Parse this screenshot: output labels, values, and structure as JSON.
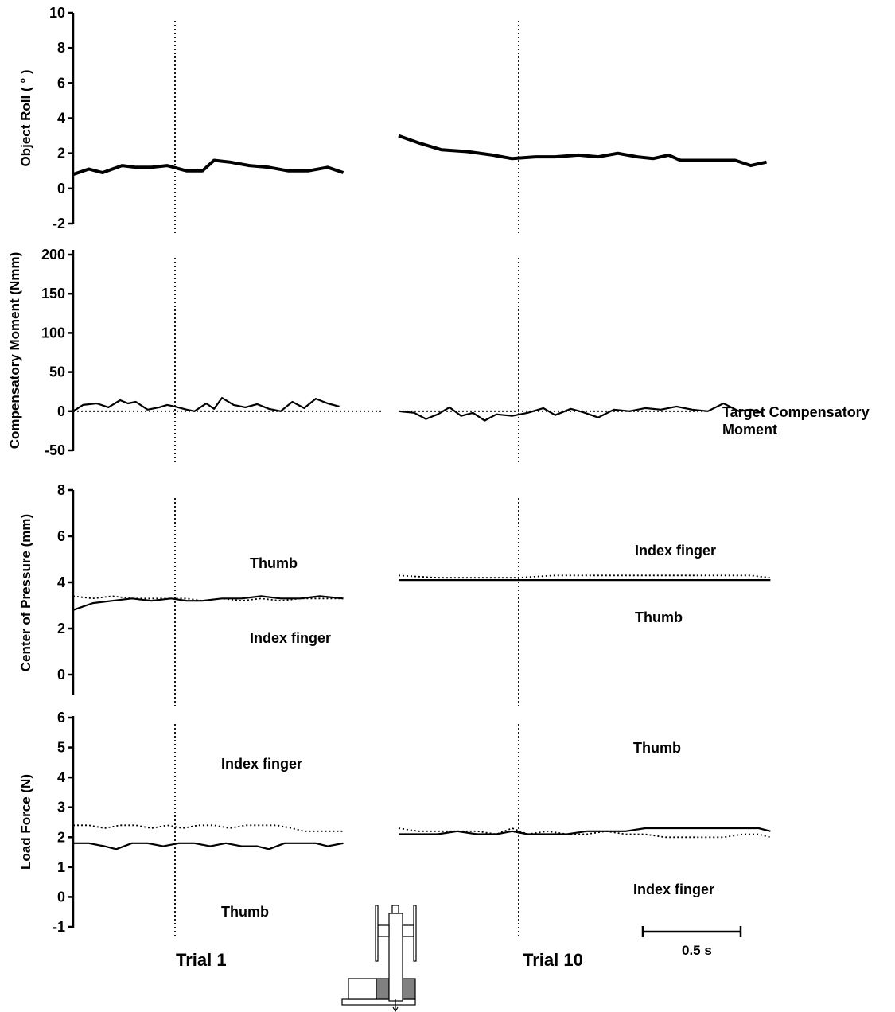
{
  "colors": {
    "ink": "#000000",
    "background": "#ffffff",
    "device_gray": "#808080"
  },
  "labels": {
    "trial1": "Trial 1",
    "trial10": "Trial 10",
    "scale_bar": "0.5 s",
    "target_line_1": "Target Compensatory",
    "target_line_2": "Moment"
  },
  "chart_data": [
    {
      "type": "line",
      "ylabel": "Object Roll ( ° )",
      "ylim": [
        -2,
        10
      ],
      "yticks": [
        -2,
        0,
        2,
        4,
        6,
        8,
        10
      ],
      "x_unit": "s",
      "onset_time": 0.58,
      "series": [
        {
          "trial": "Trial 1",
          "style": "solid-thick",
          "x": [
            0,
            0.08,
            0.15,
            0.25,
            0.32,
            0.4,
            0.48,
            0.58,
            0.66,
            0.72,
            0.8,
            0.9,
            1.0,
            1.1,
            1.2,
            1.3,
            1.38
          ],
          "y": [
            0.8,
            1.1,
            0.9,
            1.3,
            1.2,
            1.2,
            1.3,
            1.0,
            1.0,
            1.6,
            1.5,
            1.3,
            1.2,
            1.0,
            1.0,
            1.2,
            0.9
          ]
        },
        {
          "trial": "Trial 10",
          "style": "solid-thick",
          "x": [
            0,
            0.1,
            0.22,
            0.35,
            0.48,
            0.58,
            0.7,
            0.8,
            0.92,
            1.02,
            1.12,
            1.22,
            1.3,
            1.38,
            1.44,
            1.5,
            1.56,
            1.62,
            1.72,
            1.8,
            1.88
          ],
          "y": [
            3.0,
            2.6,
            2.2,
            2.1,
            1.9,
            1.7,
            1.8,
            1.8,
            1.9,
            1.8,
            2.0,
            1.8,
            1.7,
            1.9,
            1.6,
            1.6,
            1.6,
            1.6,
            1.6,
            1.3,
            1.5
          ]
        }
      ],
      "annotations": []
    },
    {
      "type": "line",
      "ylabel": "Compensatory Moment (Nmm)",
      "ylim": [
        -50,
        210
      ],
      "yticks": [
        -50,
        0,
        50,
        100,
        150,
        200
      ],
      "x_unit": "s",
      "onset_time": 0.58,
      "series": [
        {
          "trial": "Trial 1",
          "style": "solid",
          "x": [
            0,
            0.05,
            0.12,
            0.18,
            0.24,
            0.28,
            0.32,
            0.38,
            0.44,
            0.48,
            0.52,
            0.58,
            0.62,
            0.68,
            0.72,
            0.76,
            0.82,
            0.88,
            0.94,
            1.0,
            1.06,
            1.12,
            1.18,
            1.24,
            1.3,
            1.36
          ],
          "y": [
            0,
            8,
            10,
            5,
            14,
            10,
            12,
            2,
            5,
            8,
            6,
            2,
            0,
            10,
            3,
            17,
            8,
            5,
            9,
            3,
            0,
            12,
            4,
            16,
            10,
            6
          ]
        },
        {
          "trial": "Trial 10",
          "style": "solid",
          "x": [
            0,
            0.08,
            0.14,
            0.2,
            0.26,
            0.32,
            0.38,
            0.44,
            0.5,
            0.58,
            0.66,
            0.74,
            0.8,
            0.88,
            0.94,
            1.02,
            1.1,
            1.18,
            1.26,
            1.34,
            1.42,
            1.5,
            1.58,
            1.66,
            1.74,
            1.8,
            1.86
          ],
          "y": [
            0,
            -2,
            -10,
            -4,
            5,
            -6,
            -2,
            -12,
            -4,
            -6,
            -2,
            4,
            -5,
            3,
            -1,
            -8,
            2,
            0,
            4,
            2,
            6,
            2,
            0,
            10,
            0,
            2,
            -2
          ]
        },
        {
          "name": "Target Compensatory Moment",
          "style": "dotted",
          "x": [
            0,
            1.9
          ],
          "y": [
            0,
            0
          ]
        }
      ],
      "annotations": [
        "Target Compensatory Moment"
      ]
    },
    {
      "type": "line",
      "ylabel": "Center of Pressure (mm)",
      "ylim": [
        -1,
        8
      ],
      "yticks": [
        0,
        2,
        4,
        6,
        8
      ],
      "x_unit": "s",
      "onset_time": 0.58,
      "series": [
        {
          "trial": "Trial 1",
          "name": "Thumb",
          "style": "solid",
          "x": [
            0,
            0.1,
            0.2,
            0.3,
            0.4,
            0.5,
            0.58,
            0.66,
            0.76,
            0.86,
            0.96,
            1.06,
            1.16,
            1.26,
            1.38
          ],
          "y": [
            2.8,
            3.1,
            3.2,
            3.3,
            3.2,
            3.3,
            3.2,
            3.2,
            3.3,
            3.3,
            3.4,
            3.3,
            3.3,
            3.4,
            3.3
          ]
        },
        {
          "trial": "Trial 1",
          "name": "Index finger",
          "style": "dotted",
          "x": [
            0,
            0.1,
            0.2,
            0.3,
            0.4,
            0.5,
            0.58,
            0.66,
            0.76,
            0.86,
            0.96,
            1.06,
            1.16,
            1.26,
            1.38
          ],
          "y": [
            3.4,
            3.3,
            3.4,
            3.3,
            3.3,
            3.3,
            3.3,
            3.2,
            3.3,
            3.2,
            3.3,
            3.2,
            3.3,
            3.3,
            3.3
          ]
        },
        {
          "trial": "Trial 10",
          "name": "Thumb",
          "style": "solid",
          "x": [
            0,
            0.2,
            0.4,
            0.6,
            0.8,
            1.0,
            1.2,
            1.4,
            1.6,
            1.8,
            1.9
          ],
          "y": [
            4.1,
            4.1,
            4.1,
            4.1,
            4.1,
            4.1,
            4.1,
            4.1,
            4.1,
            4.1,
            4.1
          ]
        },
        {
          "trial": "Trial 10",
          "name": "Index finger",
          "style": "dotted",
          "x": [
            0,
            0.2,
            0.4,
            0.6,
            0.8,
            1.0,
            1.2,
            1.4,
            1.6,
            1.8,
            1.9
          ],
          "y": [
            4.3,
            4.2,
            4.2,
            4.2,
            4.3,
            4.3,
            4.3,
            4.3,
            4.3,
            4.3,
            4.2
          ]
        }
      ],
      "annotations": [
        "Thumb",
        "Index finger",
        "Index finger",
        "Thumb"
      ]
    },
    {
      "type": "line",
      "ylabel": "Load Force (N)",
      "ylim": [
        -1,
        6
      ],
      "yticks": [
        -1,
        0,
        1,
        2,
        3,
        4,
        5,
        6
      ],
      "x_unit": "s",
      "onset_time": 0.58,
      "series": [
        {
          "trial": "Trial 1",
          "name": "Thumb",
          "style": "solid",
          "x": [
            0,
            0.08,
            0.16,
            0.22,
            0.3,
            0.38,
            0.46,
            0.54,
            0.62,
            0.7,
            0.78,
            0.86,
            0.94,
            1.0,
            1.08,
            1.16,
            1.24,
            1.3,
            1.38
          ],
          "y": [
            1.8,
            1.8,
            1.7,
            1.6,
            1.8,
            1.8,
            1.7,
            1.8,
            1.8,
            1.7,
            1.8,
            1.7,
            1.7,
            1.6,
            1.8,
            1.8,
            1.8,
            1.7,
            1.8
          ]
        },
        {
          "trial": "Trial 1",
          "name": "Index finger",
          "style": "dotted",
          "x": [
            0,
            0.08,
            0.16,
            0.24,
            0.32,
            0.4,
            0.48,
            0.56,
            0.64,
            0.72,
            0.8,
            0.88,
            0.96,
            1.04,
            1.12,
            1.18,
            1.24,
            1.3,
            1.38
          ],
          "y": [
            2.4,
            2.4,
            2.3,
            2.4,
            2.4,
            2.3,
            2.4,
            2.3,
            2.4,
            2.4,
            2.3,
            2.4,
            2.4,
            2.4,
            2.3,
            2.2,
            2.2,
            2.2,
            2.2
          ]
        },
        {
          "trial": "Trial 10",
          "name": "Thumb",
          "style": "solid",
          "x": [
            0,
            0.1,
            0.2,
            0.3,
            0.4,
            0.5,
            0.58,
            0.66,
            0.76,
            0.86,
            0.96,
            1.06,
            1.16,
            1.26,
            1.36,
            1.46,
            1.56,
            1.66,
            1.76,
            1.84,
            1.9
          ],
          "y": [
            2.1,
            2.1,
            2.1,
            2.2,
            2.1,
            2.1,
            2.2,
            2.1,
            2.1,
            2.1,
            2.2,
            2.2,
            2.2,
            2.3,
            2.3,
            2.3,
            2.3,
            2.3,
            2.3,
            2.3,
            2.2
          ]
        },
        {
          "trial": "Trial 10",
          "name": "Index finger",
          "style": "dotted",
          "x": [
            0,
            0.1,
            0.2,
            0.3,
            0.4,
            0.5,
            0.58,
            0.66,
            0.76,
            0.86,
            0.96,
            1.06,
            1.16,
            1.26,
            1.36,
            1.46,
            1.56,
            1.66,
            1.76,
            1.84,
            1.9
          ],
          "y": [
            2.3,
            2.2,
            2.2,
            2.2,
            2.2,
            2.1,
            2.3,
            2.1,
            2.2,
            2.1,
            2.1,
            2.2,
            2.1,
            2.1,
            2.0,
            2.0,
            2.0,
            2.0,
            2.1,
            2.1,
            2.0
          ]
        }
      ],
      "annotations": [
        "Index finger",
        "Thumb",
        "Thumb",
        "Index finger"
      ]
    }
  ]
}
